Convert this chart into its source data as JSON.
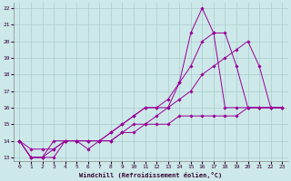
{
  "xlabel": "Windchill (Refroidissement éolien,°C)",
  "ylabel": "",
  "background_color": "#cce8e8",
  "line_color": "#990099",
  "grid_color": "#aacccc",
  "xlim": [
    -0.5,
    23.5
  ],
  "ylim": [
    12.8,
    22.3
  ],
  "yticks": [
    13,
    14,
    15,
    16,
    17,
    18,
    19,
    20,
    21,
    22
  ],
  "xticks": [
    0,
    1,
    2,
    3,
    4,
    5,
    6,
    7,
    8,
    9,
    10,
    11,
    12,
    13,
    14,
    15,
    16,
    17,
    18,
    19,
    20,
    21,
    22,
    23
  ],
  "series": [
    {
      "x": [
        0,
        1,
        2,
        3,
        4,
        5,
        6,
        7,
        8,
        9,
        10,
        11,
        12,
        13,
        14,
        15,
        16,
        17,
        18,
        19,
        20,
        21,
        22,
        23
      ],
      "y": [
        14,
        13,
        13,
        14,
        14,
        14,
        14,
        14,
        14.5,
        15,
        15.5,
        16,
        16,
        16,
        17.5,
        20.5,
        22,
        20.5,
        16,
        16,
        16,
        16,
        16,
        16
      ]
    },
    {
      "x": [
        0,
        1,
        2,
        3,
        4,
        5,
        6,
        7,
        8,
        9,
        10,
        11,
        12,
        13,
        14,
        15,
        16,
        17,
        18,
        19,
        20,
        21,
        22,
        23
      ],
      "y": [
        14,
        13,
        13,
        13.5,
        14,
        14,
        14,
        14,
        14.5,
        15,
        15.5,
        16,
        16,
        16.5,
        17.5,
        18.5,
        20,
        20.5,
        20.5,
        18.5,
        16,
        16,
        16,
        16
      ]
    },
    {
      "x": [
        0,
        1,
        2,
        3,
        4,
        5,
        6,
        7,
        8,
        9,
        10,
        11,
        12,
        13,
        14,
        15,
        16,
        17,
        18,
        19,
        20,
        21,
        22,
        23
      ],
      "y": [
        14,
        13.5,
        13.5,
        13.5,
        14,
        14,
        14,
        14,
        14,
        14.5,
        15,
        15,
        15.5,
        16,
        16.5,
        17,
        18,
        18.5,
        19,
        19.5,
        20,
        18.5,
        16,
        16
      ]
    },
    {
      "x": [
        0,
        1,
        2,
        3,
        4,
        5,
        6,
        7,
        8,
        9,
        10,
        11,
        12,
        13,
        14,
        15,
        16,
        17,
        18,
        19,
        20,
        21,
        22,
        23
      ],
      "y": [
        14,
        13,
        13,
        13,
        14,
        14,
        13.5,
        14,
        14,
        14.5,
        14.5,
        15,
        15,
        15,
        15.5,
        15.5,
        15.5,
        15.5,
        15.5,
        15.5,
        16,
        16,
        16,
        16
      ]
    }
  ]
}
